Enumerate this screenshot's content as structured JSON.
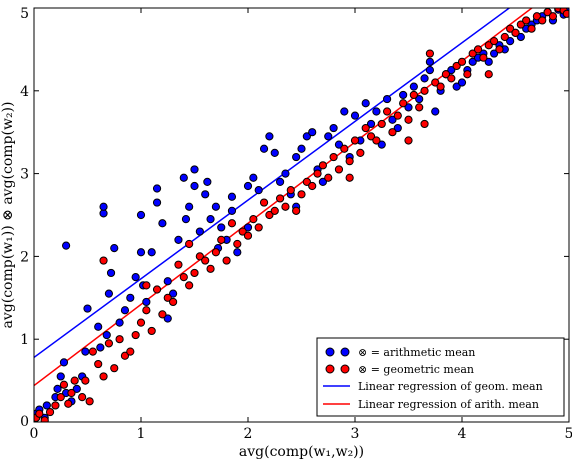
{
  "chart_data": {
    "type": "scatter",
    "xlabel": "avg(comp(w₁,w₂))",
    "ylabel": "avg(comp(w₁)) ⊗ avg(comp(w₂))",
    "xlim": [
      0,
      5
    ],
    "ylim": [
      0,
      5
    ],
    "x_ticks": [
      "0",
      "1",
      "2",
      "3",
      "4",
      "5"
    ],
    "y_ticks": [
      "0",
      "1",
      "2",
      "3",
      "4",
      "5"
    ],
    "grid": false,
    "legend_position": "bottom-right",
    "series": [
      {
        "name": "⊗ = arithmetic mean",
        "kind": "scatter",
        "color": "#0000ff",
        "points": [
          [
            0.02,
            0.1
          ],
          [
            0.05,
            0.15
          ],
          [
            0.1,
            0.05
          ],
          [
            0.12,
            0.2
          ],
          [
            0.2,
            0.3
          ],
          [
            0.22,
            0.4
          ],
          [
            0.25,
            0.55
          ],
          [
            0.28,
            0.72
          ],
          [
            0.3,
            2.13
          ],
          [
            0.3,
            0.35
          ],
          [
            0.35,
            0.25
          ],
          [
            0.4,
            0.4
          ],
          [
            0.45,
            0.55
          ],
          [
            0.48,
            0.85
          ],
          [
            0.5,
            1.37
          ],
          [
            0.6,
            1.15
          ],
          [
            0.62,
            0.9
          ],
          [
            0.65,
            2.52
          ],
          [
            0.65,
            2.6
          ],
          [
            0.68,
            1.05
          ],
          [
            0.7,
            1.55
          ],
          [
            0.72,
            1.8
          ],
          [
            0.75,
            2.1
          ],
          [
            0.8,
            1.2
          ],
          [
            0.85,
            1.35
          ],
          [
            0.9,
            1.5
          ],
          [
            0.95,
            1.75
          ],
          [
            1.0,
            2.05
          ],
          [
            1.0,
            2.5
          ],
          [
            1.02,
            1.65
          ],
          [
            1.05,
            1.45
          ],
          [
            1.1,
            2.05
          ],
          [
            1.15,
            2.65
          ],
          [
            1.15,
            2.82
          ],
          [
            1.2,
            2.4
          ],
          [
            1.25,
            1.7
          ],
          [
            1.3,
            1.55
          ],
          [
            1.35,
            2.2
          ],
          [
            1.4,
            2.95
          ],
          [
            1.42,
            2.45
          ],
          [
            1.45,
            2.6
          ],
          [
            1.5,
            2.85
          ],
          [
            1.5,
            3.05
          ],
          [
            1.55,
            2.3
          ],
          [
            1.6,
            2.75
          ],
          [
            1.62,
            2.9
          ],
          [
            1.65,
            2.45
          ],
          [
            1.7,
            2.6
          ],
          [
            1.72,
            2.1
          ],
          [
            1.75,
            2.35
          ],
          [
            1.8,
            2.2
          ],
          [
            1.85,
            2.55
          ],
          [
            1.9,
            2.05
          ],
          [
            2.0,
            2.35
          ],
          [
            2.0,
            2.85
          ],
          [
            2.05,
            2.95
          ],
          [
            2.1,
            2.8
          ],
          [
            2.15,
            3.3
          ],
          [
            2.2,
            3.45
          ],
          [
            2.25,
            3.25
          ],
          [
            2.3,
            2.9
          ],
          [
            2.35,
            3.0
          ],
          [
            2.4,
            2.75
          ],
          [
            2.45,
            3.2
          ],
          [
            2.5,
            3.3
          ],
          [
            2.55,
            3.45
          ],
          [
            2.6,
            3.5
          ],
          [
            2.65,
            3.05
          ],
          [
            2.7,
            2.9
          ],
          [
            2.75,
            3.45
          ],
          [
            2.8,
            3.55
          ],
          [
            2.85,
            3.35
          ],
          [
            2.9,
            3.75
          ],
          [
            2.95,
            3.2
          ],
          [
            3.0,
            3.7
          ],
          [
            3.05,
            3.4
          ],
          [
            3.1,
            3.85
          ],
          [
            3.15,
            3.6
          ],
          [
            3.2,
            3.75
          ],
          [
            3.3,
            3.9
          ],
          [
            3.35,
            3.65
          ],
          [
            3.4,
            3.55
          ],
          [
            3.45,
            3.95
          ],
          [
            3.5,
            3.8
          ],
          [
            3.55,
            4.05
          ],
          [
            3.6,
            3.9
          ],
          [
            3.65,
            4.15
          ],
          [
            3.7,
            4.35
          ],
          [
            3.7,
            4.25
          ],
          [
            3.75,
            3.75
          ],
          [
            3.8,
            4.0
          ],
          [
            3.85,
            4.2
          ],
          [
            3.9,
            4.25
          ],
          [
            3.95,
            4.05
          ],
          [
            4.0,
            4.1
          ],
          [
            4.05,
            4.25
          ],
          [
            4.1,
            4.35
          ],
          [
            4.15,
            4.4
          ],
          [
            4.2,
            4.45
          ],
          [
            4.25,
            4.35
          ],
          [
            4.3,
            4.45
          ],
          [
            4.35,
            4.55
          ],
          [
            4.4,
            4.5
          ],
          [
            4.45,
            4.6
          ],
          [
            4.5,
            4.7
          ],
          [
            4.55,
            4.65
          ],
          [
            4.6,
            4.75
          ],
          [
            4.65,
            4.8
          ],
          [
            4.7,
            4.85
          ],
          [
            4.75,
            4.9
          ],
          [
            4.8,
            4.95
          ],
          [
            4.85,
            4.85
          ],
          [
            4.9,
            4.98
          ],
          [
            4.92,
            5.0
          ],
          [
            4.95,
            4.92
          ],
          [
            4.98,
            4.96
          ],
          [
            1.85,
            2.72
          ],
          [
            2.45,
            2.6
          ],
          [
            3.25,
            3.35
          ],
          [
            1.25,
            1.25
          ]
        ]
      },
      {
        "name": "⊗ = geometric mean",
        "kind": "scatter",
        "color": "#ff0000",
        "points": [
          [
            0.02,
            0.05
          ],
          [
            0.05,
            0.1
          ],
          [
            0.1,
            0.02
          ],
          [
            0.15,
            0.12
          ],
          [
            0.2,
            0.2
          ],
          [
            0.25,
            0.3
          ],
          [
            0.28,
            0.45
          ],
          [
            0.32,
            0.22
          ],
          [
            0.35,
            0.35
          ],
          [
            0.38,
            0.5
          ],
          [
            0.45,
            0.3
          ],
          [
            0.48,
            0.5
          ],
          [
            0.52,
            0.25
          ],
          [
            0.55,
            0.85
          ],
          [
            0.6,
            0.7
          ],
          [
            0.65,
            0.55
          ],
          [
            0.7,
            0.95
          ],
          [
            0.75,
            0.65
          ],
          [
            0.8,
            1.0
          ],
          [
            0.85,
            0.8
          ],
          [
            0.9,
            0.85
          ],
          [
            0.95,
            1.05
          ],
          [
            1.0,
            1.2
          ],
          [
            1.05,
            1.35
          ],
          [
            1.1,
            1.1
          ],
          [
            1.15,
            1.6
          ],
          [
            1.2,
            1.3
          ],
          [
            1.25,
            1.5
          ],
          [
            1.3,
            1.45
          ],
          [
            1.35,
            1.9
          ],
          [
            1.4,
            1.75
          ],
          [
            1.45,
            1.65
          ],
          [
            1.5,
            1.8
          ],
          [
            1.55,
            2.0
          ],
          [
            1.6,
            1.95
          ],
          [
            1.65,
            1.85
          ],
          [
            1.7,
            2.05
          ],
          [
            1.75,
            2.2
          ],
          [
            1.8,
            1.95
          ],
          [
            1.85,
            2.4
          ],
          [
            1.9,
            2.15
          ],
          [
            1.95,
            2.3
          ],
          [
            2.0,
            2.25
          ],
          [
            2.05,
            2.45
          ],
          [
            2.1,
            2.35
          ],
          [
            2.15,
            2.65
          ],
          [
            2.2,
            2.5
          ],
          [
            2.25,
            2.55
          ],
          [
            2.3,
            2.7
          ],
          [
            2.35,
            2.6
          ],
          [
            2.4,
            2.8
          ],
          [
            2.45,
            2.55
          ],
          [
            2.5,
            2.75
          ],
          [
            2.55,
            2.9
          ],
          [
            2.6,
            2.85
          ],
          [
            2.65,
            3.0
          ],
          [
            2.7,
            3.1
          ],
          [
            2.75,
            2.95
          ],
          [
            2.8,
            3.2
          ],
          [
            2.85,
            3.05
          ],
          [
            2.9,
            3.3
          ],
          [
            2.95,
            3.15
          ],
          [
            3.0,
            3.4
          ],
          [
            3.05,
            3.25
          ],
          [
            3.1,
            3.55
          ],
          [
            3.15,
            3.45
          ],
          [
            3.2,
            3.4
          ],
          [
            3.25,
            3.6
          ],
          [
            3.3,
            3.75
          ],
          [
            3.35,
            3.5
          ],
          [
            3.4,
            3.7
          ],
          [
            3.45,
            3.85
          ],
          [
            3.5,
            3.65
          ],
          [
            3.55,
            3.95
          ],
          [
            3.6,
            3.8
          ],
          [
            3.65,
            4.0
          ],
          [
            3.7,
            4.45
          ],
          [
            3.75,
            4.1
          ],
          [
            3.8,
            4.05
          ],
          [
            3.85,
            4.2
          ],
          [
            3.9,
            4.15
          ],
          [
            3.95,
            4.3
          ],
          [
            4.0,
            4.35
          ],
          [
            4.05,
            4.2
          ],
          [
            4.1,
            4.45
          ],
          [
            4.15,
            4.5
          ],
          [
            4.2,
            4.4
          ],
          [
            4.25,
            4.55
          ],
          [
            4.3,
            4.6
          ],
          [
            4.35,
            4.5
          ],
          [
            4.4,
            4.65
          ],
          [
            4.45,
            4.75
          ],
          [
            4.5,
            4.7
          ],
          [
            4.55,
            4.8
          ],
          [
            4.6,
            4.85
          ],
          [
            4.65,
            4.75
          ],
          [
            4.7,
            4.9
          ],
          [
            4.75,
            4.85
          ],
          [
            4.8,
            4.95
          ],
          [
            4.85,
            4.9
          ],
          [
            4.9,
            5.0
          ],
          [
            4.95,
            4.97
          ],
          [
            4.98,
            4.93
          ],
          [
            0.65,
            1.95
          ],
          [
            1.45,
            2.15
          ],
          [
            2.95,
            2.95
          ],
          [
            3.65,
            3.6
          ],
          [
            4.25,
            4.2
          ],
          [
            1.05,
            1.65
          ],
          [
            3.5,
            3.4
          ]
        ]
      },
      {
        "name": "Linear regression of geom. mean",
        "kind": "line",
        "color": "#0000ff",
        "intercept": 0.78,
        "slope": 0.95
      },
      {
        "name": "Linear regression of arith. mean",
        "kind": "line",
        "color": "#ff0000",
        "intercept": 0.44,
        "slope": 0.98
      }
    ]
  }
}
